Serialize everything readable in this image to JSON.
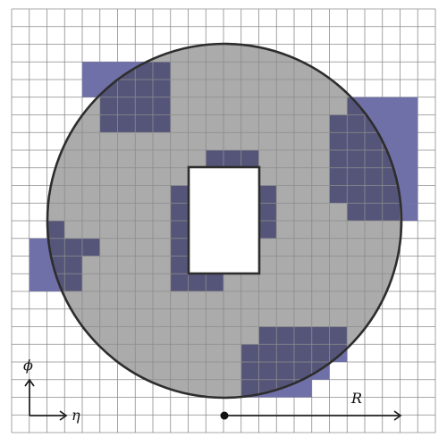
{
  "diagram": {
    "labels": {
      "phi": "ϕ",
      "eta": "η",
      "radius": "R"
    },
    "colors": {
      "grid": "#8c8c8c",
      "disk": "#ababab",
      "cell": "#7070a8",
      "cell_overlap": "#55557a",
      "outline": "#2d2d2d",
      "hole": "#ffffff"
    }
  }
}
